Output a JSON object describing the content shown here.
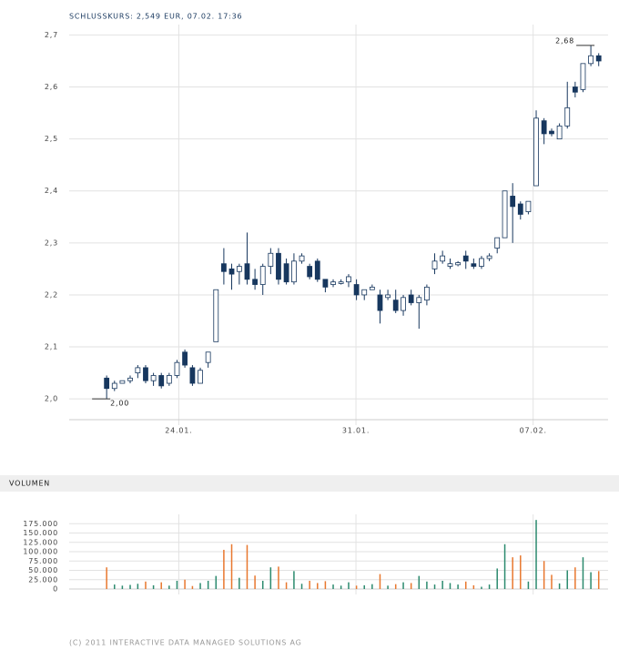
{
  "title": "SCHLUSSKURS: 2,549 EUR, 07.02. 17:36",
  "footer": "(C) 2011 INTERACTIVE DATA MANAGED SOLUTIONS AG",
  "chart_data": [
    {
      "type": "candlestick",
      "x": [
        21.15,
        21.46,
        21.77,
        22.08,
        22.38,
        22.69,
        23.0,
        23.31,
        23.62,
        23.93,
        24.24,
        24.54,
        24.85,
        25.16,
        25.47,
        25.78,
        26.09,
        26.39,
        26.7,
        27.01,
        27.32,
        27.63,
        27.94,
        28.25,
        28.55,
        28.86,
        29.17,
        29.48,
        29.79,
        30.1,
        30.41,
        30.71,
        31.02,
        31.33,
        31.64,
        31.95,
        32.26,
        32.57,
        32.87,
        33.18,
        33.49,
        33.8,
        34.11,
        34.42,
        34.72,
        35.03,
        35.34,
        35.65,
        35.96,
        36.27,
        36.58,
        36.88,
        37.19,
        37.5,
        37.81,
        38.12,
        38.43,
        38.73,
        39.04,
        39.35,
        39.66,
        39.97,
        40.28,
        40.59
      ],
      "open": [
        2.04,
        2.02,
        2.03,
        2.035,
        2.05,
        2.06,
        2.035,
        2.045,
        2.03,
        2.045,
        2.09,
        2.06,
        2.03,
        2.07,
        2.11,
        2.26,
        2.25,
        2.245,
        2.26,
        2.23,
        2.22,
        2.255,
        2.28,
        2.26,
        2.225,
        2.265,
        2.255,
        2.265,
        2.23,
        2.22,
        2.222,
        2.225,
        2.22,
        2.2,
        2.21,
        2.2,
        2.195,
        2.19,
        2.17,
        2.2,
        2.185,
        2.19,
        2.25,
        2.265,
        2.255,
        2.258,
        2.275,
        2.26,
        2.255,
        2.27,
        2.29,
        2.31,
        2.39,
        2.375,
        2.36,
        2.41,
        2.535,
        2.515,
        2.5,
        2.525,
        2.6,
        2.595,
        2.645,
        2.66
      ],
      "high": [
        2.045,
        2.035,
        2.035,
        2.045,
        2.065,
        2.065,
        2.05,
        2.05,
        2.05,
        2.075,
        2.095,
        2.065,
        2.06,
        2.09,
        2.21,
        2.29,
        2.26,
        2.26,
        2.32,
        2.25,
        2.26,
        2.29,
        2.29,
        2.27,
        2.28,
        2.28,
        2.26,
        2.27,
        2.23,
        2.23,
        2.23,
        2.24,
        2.23,
        2.21,
        2.22,
        2.21,
        2.21,
        2.21,
        2.2,
        2.21,
        2.2,
        2.22,
        2.28,
        2.285,
        2.27,
        2.265,
        2.285,
        2.27,
        2.275,
        2.28,
        2.31,
        2.4,
        2.415,
        2.38,
        2.38,
        2.555,
        2.54,
        2.52,
        2.53,
        2.61,
        2.61,
        2.64,
        2.68,
        2.665
      ],
      "low": [
        2.0,
        2.015,
        2.03,
        2.03,
        2.04,
        2.03,
        2.025,
        2.02,
        2.025,
        2.04,
        2.06,
        2.025,
        2.03,
        2.06,
        2.11,
        2.22,
        2.21,
        2.22,
        2.22,
        2.21,
        2.2,
        2.24,
        2.22,
        2.22,
        2.22,
        2.26,
        2.23,
        2.225,
        2.205,
        2.215,
        2.22,
        2.215,
        2.19,
        2.19,
        2.21,
        2.145,
        2.19,
        2.165,
        2.16,
        2.18,
        2.135,
        2.18,
        2.24,
        2.26,
        2.25,
        2.255,
        2.25,
        2.25,
        2.25,
        2.265,
        2.28,
        2.31,
        2.3,
        2.345,
        2.355,
        2.41,
        2.49,
        2.505,
        2.5,
        2.52,
        2.58,
        2.59,
        2.64,
        2.64
      ],
      "close": [
        2.02,
        2.03,
        2.035,
        2.04,
        2.06,
        2.035,
        2.045,
        2.025,
        2.045,
        2.07,
        2.065,
        2.03,
        2.055,
        2.09,
        2.21,
        2.245,
        2.24,
        2.255,
        2.23,
        2.22,
        2.255,
        2.28,
        2.23,
        2.225,
        2.265,
        2.275,
        2.235,
        2.23,
        2.215,
        2.225,
        2.225,
        2.235,
        2.2,
        2.21,
        2.215,
        2.17,
        2.2,
        2.17,
        2.195,
        2.185,
        2.195,
        2.215,
        2.265,
        2.275,
        2.26,
        2.262,
        2.265,
        2.255,
        2.27,
        2.275,
        2.31,
        2.4,
        2.37,
        2.355,
        2.38,
        2.54,
        2.51,
        2.51,
        2.525,
        2.56,
        2.59,
        2.645,
        2.66,
        2.65
      ],
      "up_color": "#ffffff",
      "down_color": "#17375e",
      "line_color": "#17375e",
      "xlim": [
        19.67,
        40.96
      ],
      "ylim": [
        1.96,
        2.72
      ],
      "xticks": [
        {
          "value": 24,
          "label": "24.01."
        },
        {
          "value": 31,
          "label": "31.01."
        },
        {
          "value": 38,
          "label": "07.02."
        }
      ],
      "yticks": [
        {
          "value": 2.0,
          "label": "2,0"
        },
        {
          "value": 2.1,
          "label": "2,1"
        },
        {
          "value": 2.2,
          "label": "2,2"
        },
        {
          "value": 2.3,
          "label": "2,3"
        },
        {
          "value": 2.4,
          "label": "2,4"
        },
        {
          "value": 2.5,
          "label": "2,5"
        },
        {
          "value": 2.6,
          "label": "2,6"
        },
        {
          "value": 2.7,
          "label": "2,7"
        }
      ],
      "annotations": [
        {
          "label": "2,00",
          "value": 2.0,
          "x": 21.15
        },
        {
          "label": "2,68",
          "value": 2.68,
          "x": 40.28
        }
      ],
      "grid": true
    },
    {
      "type": "bar",
      "title": "VOLUMEN",
      "values": [
        58000,
        12000,
        9000,
        11000,
        14000,
        20000,
        10000,
        18000,
        9000,
        22000,
        25000,
        8000,
        16000,
        22000,
        35000,
        105000,
        120000,
        30000,
        118000,
        36000,
        22000,
        58000,
        60000,
        18000,
        48000,
        14000,
        22000,
        16000,
        21000,
        12000,
        9000,
        18000,
        9000,
        10000,
        13000,
        40000,
        9000,
        13000,
        18000,
        16000,
        35000,
        20000,
        12000,
        22000,
        16000,
        12000,
        20000,
        10000,
        6000,
        12000,
        55000,
        120000,
        85000,
        90000,
        20000,
        185000,
        75000,
        38000,
        15000,
        50000,
        58000,
        85000,
        45000,
        48000
      ],
      "up_color": "#2b8a6e",
      "down_color": "#e8772e",
      "ylim": [
        0,
        200000
      ],
      "yticks": [
        0,
        {
          "value": 25000,
          "label": "25.000"
        },
        {
          "value": 50000,
          "label": "50.000"
        },
        {
          "value": 75000,
          "label": "75.000"
        },
        {
          "value": 100000,
          "label": "100.000"
        },
        {
          "value": 125000,
          "label": "125.000"
        },
        {
          "value": 150000,
          "label": "150.000"
        },
        {
          "value": 175000,
          "label": "175.000"
        }
      ],
      "grid": true
    }
  ]
}
